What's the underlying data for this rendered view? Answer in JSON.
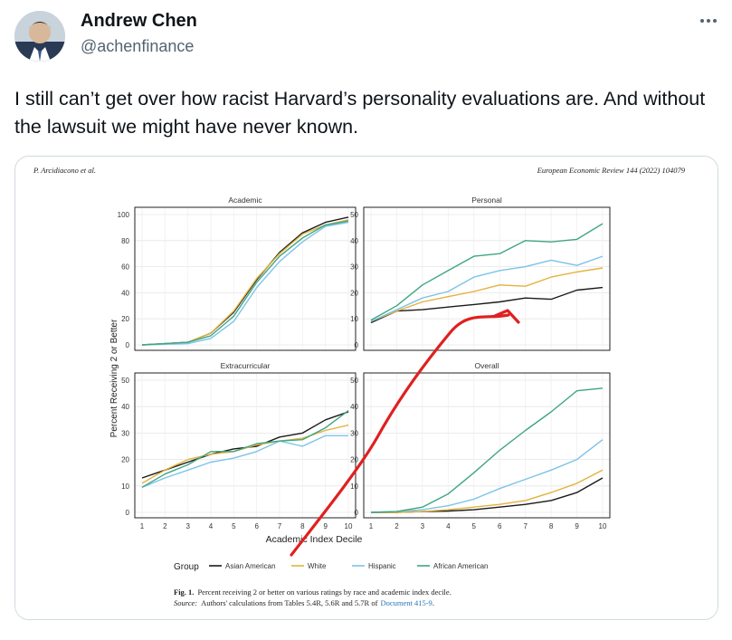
{
  "tweet": {
    "author_name": "Andrew Chen",
    "author_handle": "@achenfinance",
    "more_icon": "more-horizontal-icon",
    "text": "I still can’t get over how racist Harvard’s personality evaluations are. And without the lawsuit we might have never known."
  },
  "figure": {
    "header_left": "P. Arcidiacono et al.",
    "header_right": "European Economic Review 144 (2022) 104079",
    "y_axis_title": "Percent Receiving 2 or Better",
    "x_axis_title": "Academic Index Decile",
    "legend_title": "Group",
    "caption_label": "Fig. 1.",
    "caption_text": "Percent receiving 2 or better on various ratings by race and academic index decile.",
    "source_label": "Source:",
    "source_text": "Authors' calculations from Tables 5.4R, 5.6R and 5.7R of",
    "source_link": "Document 415-9",
    "source_end": ".",
    "annotation": "red hand-drawn arrow pointing to Asian American line in Personal panel"
  },
  "chart_data": {
    "type": "line",
    "x": [
      1,
      2,
      3,
      4,
      5,
      6,
      7,
      8,
      9,
      10
    ],
    "xlabel": "Academic Index Decile",
    "ylabel": "Percent Receiving 2 or Better",
    "colors": {
      "Asian American": "#1a1a1a",
      "White": "#e3b23c",
      "Hispanic": "#7cc3e8",
      "African American": "#3fa583"
    },
    "legend": [
      "Asian American",
      "White",
      "Hispanic",
      "African American"
    ],
    "legend_placement": "bottom",
    "grid": true,
    "panels": [
      {
        "title": "Academic",
        "ylim": [
          0,
          100
        ],
        "yticks": [
          0,
          20,
          40,
          60,
          80,
          100
        ],
        "series": [
          {
            "name": "Asian American",
            "values": [
              0,
              1,
              2,
              9,
              25,
              50,
              71,
              86,
              94,
              98
            ]
          },
          {
            "name": "White",
            "values": [
              0,
              1,
              2,
              9,
              26,
              51,
              70,
              85,
              92,
              96
            ]
          },
          {
            "name": "Hispanic",
            "values": [
              0,
              0.5,
              1,
              5,
              18,
              44,
              64,
              79,
              91,
              94
            ]
          },
          {
            "name": "African American",
            "values": [
              0,
              1,
              2,
              7,
              22,
              48,
              68,
              82,
              92,
              95
            ]
          }
        ]
      },
      {
        "title": "Personal",
        "ylim": [
          0,
          50
        ],
        "yticks": [
          0,
          10,
          20,
          30,
          40,
          50
        ],
        "series": [
          {
            "name": "Asian American",
            "values": [
              8.5,
              13,
              13.5,
              14.5,
              15.5,
              16.5,
              18,
              17.5,
              21,
              22
            ]
          },
          {
            "name": "White",
            "values": [
              9,
              13,
              16.5,
              18.5,
              20.5,
              23,
              22.5,
              26,
              28,
              29.5
            ]
          },
          {
            "name": "Hispanic",
            "values": [
              9,
              13.5,
              18,
              20.5,
              26,
              28.5,
              30,
              32.5,
              30.5,
              34
            ]
          },
          {
            "name": "African American",
            "values": [
              9.5,
              15,
              23,
              28.5,
              34,
              35,
              40,
              39.5,
              40.5,
              46.5
            ]
          }
        ]
      },
      {
        "title": "Extracurricular",
        "ylim": [
          0,
          50
        ],
        "yticks": [
          0,
          10,
          20,
          30,
          40,
          50
        ],
        "series": [
          {
            "name": "Asian American",
            "values": [
              13,
              16,
              19,
              22,
              24,
              25,
              28.5,
              30,
              35,
              38
            ]
          },
          {
            "name": "White",
            "values": [
              11,
              16,
              20,
              22,
              23,
              25.5,
              27,
              28,
              31,
              33
            ]
          },
          {
            "name": "Hispanic",
            "values": [
              9.5,
              13,
              16,
              19,
              20.5,
              23,
              27,
              25,
              29,
              29
            ]
          },
          {
            "name": "African American",
            "values": [
              9.5,
              14.5,
              18,
              23,
              23,
              26,
              27,
              27.5,
              32,
              38.5
            ]
          }
        ]
      },
      {
        "title": "Overall",
        "ylim": [
          0,
          50
        ],
        "yticks": [
          0,
          10,
          20,
          30,
          40,
          50
        ],
        "series": [
          {
            "name": "Asian American",
            "values": [
              0,
              0,
              0.3,
              0.5,
              1,
              2,
              3,
              4.5,
              7.5,
              13
            ]
          },
          {
            "name": "White",
            "values": [
              0,
              0,
              0.3,
              1,
              2,
              3,
              4.5,
              7.5,
              11,
              16
            ]
          },
          {
            "name": "Hispanic",
            "values": [
              0,
              0.3,
              1,
              2.5,
              5,
              9,
              12.5,
              16,
              20,
              27.5
            ]
          },
          {
            "name": "African American",
            "values": [
              0,
              0.3,
              2,
              7,
              15,
              23.5,
              31,
              38,
              46,
              47
            ]
          }
        ]
      }
    ]
  }
}
